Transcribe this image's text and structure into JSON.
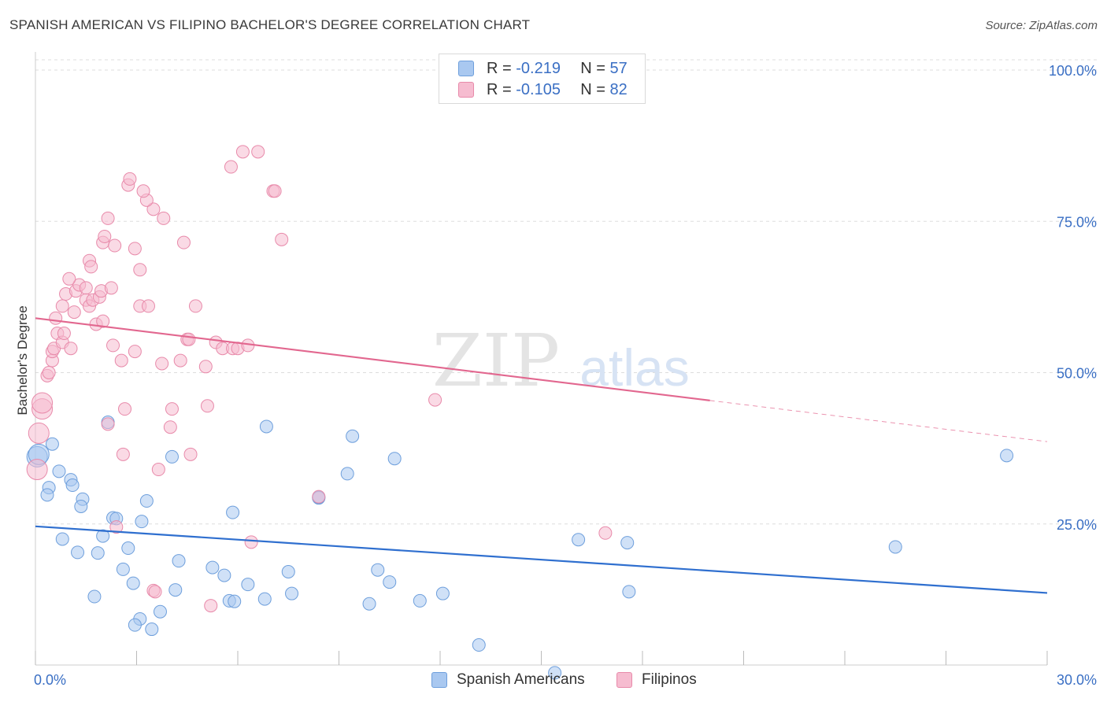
{
  "title": "SPANISH AMERICAN VS FILIPINO BACHELOR'S DEGREE CORRELATION CHART",
  "source": "Source: ZipAtlas.com",
  "watermark": {
    "zip": "ZIP",
    "atlas": "atlas"
  },
  "legend": {
    "rows": [
      {
        "r_label": "R =",
        "r_value": "-0.219",
        "n_label": "N =",
        "n_value": "57"
      },
      {
        "r_label": "R =",
        "r_value": "-0.105",
        "n_label": "N =",
        "n_value": "82"
      }
    ]
  },
  "bottom_legend": [
    "Spanish Americans",
    "Filipinos"
  ],
  "colors": {
    "blue_fill": "#a9c8f0",
    "blue_stroke": "#6e9fdc",
    "blue_line": "#2f6fcf",
    "pink_fill": "#f6bcd0",
    "pink_stroke": "#e88aaa",
    "pink_line": "#e2678f",
    "axis_text": "#3a6fc4",
    "grid": "#dddddd"
  },
  "chart_data": {
    "type": "scatter",
    "title": "SPANISH AMERICAN VS FILIPINO BACHELOR'S DEGREE CORRELATION CHART",
    "xlabel": "",
    "ylabel": "Bachelor's Degree",
    "xlim": [
      0,
      30
    ],
    "ylim": [
      0,
      100
    ],
    "x_tick_labels": [
      "0.0%",
      "30.0%"
    ],
    "y_ticks": [
      25,
      50,
      75,
      100
    ],
    "y_tick_labels": [
      "25.0%",
      "50.0%",
      "75.0%",
      "100.0%"
    ],
    "grid": true,
    "series": [
      {
        "name": "Spanish Americans",
        "r": -0.219,
        "n": 57,
        "trend": {
          "x": [
            0,
            30
          ],
          "y": [
            24.6,
            13.6
          ],
          "solid_until": 30
        },
        "points": [
          [
            0.05,
            36.1
          ],
          [
            0.1,
            36.5
          ],
          [
            0.5,
            38.2
          ],
          [
            0.7,
            33.7
          ],
          [
            0.4,
            31.0
          ],
          [
            0.35,
            29.8
          ],
          [
            1.05,
            32.3
          ],
          [
            1.1,
            31.4
          ],
          [
            1.4,
            29.1
          ],
          [
            1.35,
            27.9
          ],
          [
            2.3,
            26.0
          ],
          [
            2.4,
            25.9
          ],
          [
            0.8,
            22.5
          ],
          [
            1.25,
            20.3
          ],
          [
            1.85,
            20.2
          ],
          [
            2.0,
            23.0
          ],
          [
            2.75,
            21.0
          ],
          [
            3.3,
            28.8
          ],
          [
            3.15,
            25.4
          ],
          [
            2.6,
            17.5
          ],
          [
            2.9,
            15.2
          ],
          [
            1.75,
            13.0
          ],
          [
            3.1,
            9.3
          ],
          [
            2.95,
            8.3
          ],
          [
            3.45,
            7.6
          ],
          [
            3.7,
            10.5
          ],
          [
            4.15,
            14.1
          ],
          [
            4.25,
            18.9
          ],
          [
            5.25,
            17.8
          ],
          [
            5.6,
            16.5
          ],
          [
            4.05,
            36.1
          ],
          [
            2.15,
            41.8
          ],
          [
            5.85,
            26.9
          ],
          [
            5.75,
            12.3
          ],
          [
            5.9,
            12.2
          ],
          [
            6.8,
            12.6
          ],
          [
            6.3,
            15.0
          ],
          [
            6.85,
            41.1
          ],
          [
            7.5,
            17.1
          ],
          [
            7.6,
            13.5
          ],
          [
            8.4,
            29.3
          ],
          [
            8.4,
            29.4
          ],
          [
            9.25,
            33.3
          ],
          [
            9.4,
            39.5
          ],
          [
            9.9,
            11.8
          ],
          [
            10.15,
            17.4
          ],
          [
            10.5,
            15.4
          ],
          [
            10.65,
            35.8
          ],
          [
            11.4,
            12.3
          ],
          [
            12.08,
            13.5
          ],
          [
            13.15,
            5.0
          ],
          [
            15.4,
            0.4
          ],
          [
            16.1,
            22.4
          ],
          [
            17.55,
            21.9
          ],
          [
            17.6,
            13.8
          ],
          [
            25.5,
            21.2
          ],
          [
            28.8,
            36.3
          ]
        ]
      },
      {
        "name": "Filipinos",
        "r": -0.105,
        "n": 82,
        "trend": {
          "x": [
            0,
            30
          ],
          "y": [
            59.0,
            38.6
          ],
          "solid_until": 20.0
        },
        "points": [
          [
            0.05,
            34.0
          ],
          [
            0.1,
            40.0
          ],
          [
            0.2,
            44.0
          ],
          [
            0.2,
            45.0
          ],
          [
            0.35,
            49.5
          ],
          [
            0.4,
            50.0
          ],
          [
            0.5,
            52.0
          ],
          [
            0.5,
            53.5
          ],
          [
            0.55,
            54.0
          ],
          [
            0.65,
            56.5
          ],
          [
            0.8,
            55.0
          ],
          [
            0.85,
            56.5
          ],
          [
            1.05,
            54.0
          ],
          [
            0.6,
            59.0
          ],
          [
            0.8,
            61.0
          ],
          [
            1.15,
            60.0
          ],
          [
            0.9,
            63.0
          ],
          [
            1.2,
            63.5
          ],
          [
            1.3,
            64.5
          ],
          [
            1.5,
            64.0
          ],
          [
            1.0,
            65.5
          ],
          [
            1.5,
            62.0
          ],
          [
            1.6,
            61.0
          ],
          [
            1.7,
            62.0
          ],
          [
            1.8,
            58.0
          ],
          [
            1.9,
            62.5
          ],
          [
            1.95,
            63.5
          ],
          [
            2.0,
            58.5
          ],
          [
            2.25,
            64.0
          ],
          [
            1.6,
            68.5
          ],
          [
            1.65,
            67.5
          ],
          [
            2.0,
            71.5
          ],
          [
            2.05,
            72.5
          ],
          [
            2.35,
            71.0
          ],
          [
            2.15,
            75.5
          ],
          [
            2.95,
            70.5
          ],
          [
            3.1,
            67.0
          ],
          [
            3.1,
            61.0
          ],
          [
            3.35,
            61.0
          ],
          [
            3.5,
            77.0
          ],
          [
            3.8,
            75.5
          ],
          [
            3.3,
            78.5
          ],
          [
            3.2,
            80.0
          ],
          [
            2.75,
            81.0
          ],
          [
            2.8,
            82.0
          ],
          [
            4.4,
            71.5
          ],
          [
            4.0,
            41.0
          ],
          [
            3.5,
            14.0
          ],
          [
            3.55,
            13.8
          ],
          [
            3.65,
            34.0
          ],
          [
            3.75,
            51.5
          ],
          [
            4.05,
            44.0
          ],
          [
            4.3,
            52.0
          ],
          [
            4.5,
            55.5
          ],
          [
            4.55,
            55.5
          ],
          [
            4.6,
            36.5
          ],
          [
            4.75,
            61.0
          ],
          [
            5.05,
            51.0
          ],
          [
            5.2,
            11.5
          ],
          [
            2.3,
            54.5
          ],
          [
            2.55,
            52.0
          ],
          [
            2.65,
            44.0
          ],
          [
            2.6,
            36.5
          ],
          [
            2.95,
            53.5
          ],
          [
            2.15,
            41.5
          ],
          [
            2.4,
            24.5
          ],
          [
            5.1,
            44.5
          ],
          [
            5.35,
            55.0
          ],
          [
            5.55,
            54.0
          ],
          [
            5.85,
            54.0
          ],
          [
            6.0,
            54.0
          ],
          [
            6.3,
            54.5
          ],
          [
            5.8,
            84.0
          ],
          [
            6.15,
            86.5
          ],
          [
            6.6,
            86.5
          ],
          [
            7.05,
            80.0
          ],
          [
            7.1,
            80.0
          ],
          [
            7.3,
            72.0
          ],
          [
            6.4,
            22.0
          ],
          [
            8.4,
            29.5
          ],
          [
            11.85,
            45.5
          ],
          [
            16.9,
            23.5
          ]
        ]
      }
    ]
  }
}
